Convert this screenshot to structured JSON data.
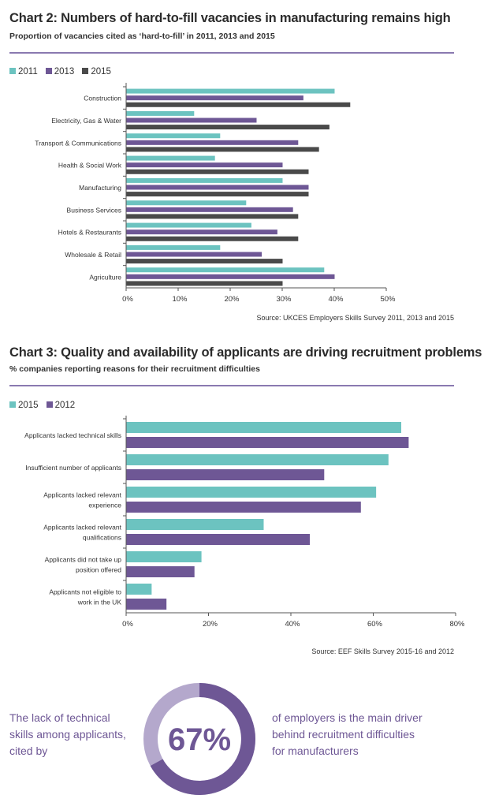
{
  "chart_data": [
    {
      "type": "bar",
      "orientation": "horizontal",
      "title": "Chart 2: Numbers of hard-to-fill vacancies in manufacturing remains high",
      "subtitle": "Proportion of vacancies cited as ‘hard-to-fill’ in 2011, 2013 and 2015",
      "categories": [
        "Construction",
        "Electricity, Gas & Water",
        "Transport & Communications",
        "Health & Social Work",
        "Manufacturing",
        "Business Services",
        "Hotels & Restaurants",
        "Wholesale & Retail",
        "Agriculture"
      ],
      "series": [
        {
          "name": "2011",
          "color": "#6cc3c0",
          "values": [
            40,
            13,
            18,
            17,
            30,
            23,
            24,
            18,
            38
          ]
        },
        {
          "name": "2013",
          "color": "#6e5795",
          "values": [
            34,
            25,
            33,
            30,
            35,
            32,
            29,
            26,
            40
          ]
        },
        {
          "name": "2015",
          "color": "#4a4a4a",
          "values": [
            43,
            39,
            37,
            35,
            35,
            33,
            33,
            30,
            30
          ]
        }
      ],
      "xlim": [
        0,
        50
      ],
      "xticks": [
        "0%",
        "10%",
        "20%",
        "30%",
        "40%",
        "50%"
      ],
      "legend": "top-left",
      "source": "Source: UKCES Employers Skills Survey 2011, 2013 and 2015"
    },
    {
      "type": "bar",
      "orientation": "horizontal",
      "title": "Chart 3: Quality and availability of applicants are driving recruitment problems",
      "subtitle": "% companies reporting reasons for their recruitment difficulties",
      "categories": [
        [
          "Applicants lacked technical skills"
        ],
        [
          "Insufficient number of applicants"
        ],
        [
          "Applicants lacked relevant",
          "experience"
        ],
        [
          "Applicants lacked relevant",
          "qualifications"
        ],
        [
          "Applicants did not take up",
          "position offered"
        ],
        [
          "Applicants not eligible to",
          "work in the UK"
        ]
      ],
      "series": [
        {
          "name": "2015",
          "color": "#6cc3c0",
          "values": [
            66.7,
            63.6,
            60.6,
            33.3,
            18.2,
            6.1
          ]
        },
        {
          "name": "2012",
          "color": "#6e5795",
          "values": [
            68.5,
            48.0,
            56.9,
            44.5,
            16.5,
            9.7
          ]
        }
      ],
      "xlim": [
        0,
        80
      ],
      "xticks": [
        "0%",
        "20%",
        "40%",
        "60%",
        "80%"
      ],
      "legend": "top-left",
      "source": "Source: EEF Skills Survey 2015-16 and 2012"
    }
  ],
  "stat": {
    "value": "67%",
    "fraction": 0.67,
    "left_text": [
      "The lack of technical",
      "skills among applicants,",
      "cited by"
    ],
    "right_text": [
      "of employers is the main driver",
      "behind recruitment difficulties",
      "for manufacturers"
    ],
    "ring_color": "#6e5795",
    "ring_bg_color": "#b4a8cc"
  }
}
